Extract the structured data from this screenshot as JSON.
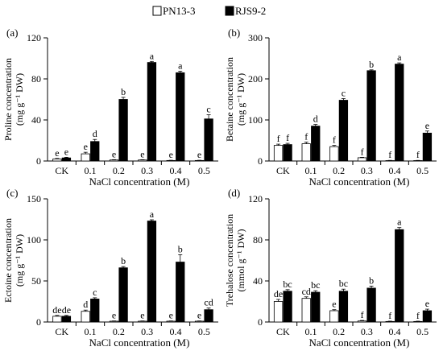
{
  "legend": {
    "items": [
      {
        "name": "PN13-3",
        "color": "#ffffff"
      },
      {
        "name": "RJS9-2",
        "color": "#000000"
      }
    ]
  },
  "chart_data": [
    {
      "type": "bar",
      "panel_label": "(a)",
      "categories": [
        "CK",
        "0.1",
        "0.2",
        "0.3",
        "0.4",
        "0.5"
      ],
      "xlabel": "NaCl concentration (M)",
      "ylabel_line1": "Proline concentration",
      "ylabel_line2": "(mg g⁻¹ DW)",
      "ylim": [
        0,
        120
      ],
      "yticks": [
        "0",
        "40",
        "80",
        "120"
      ],
      "series": [
        {
          "name": "PN13-3",
          "values": [
            2,
            7,
            1,
            1,
            0.5,
            0.5
          ],
          "errors": [
            0.5,
            1.5,
            0.3,
            0.3,
            0.2,
            0.2
          ],
          "letters": [
            "e",
            "e",
            "e",
            "e",
            "e",
            "e"
          ],
          "color": "#ffffff"
        },
        {
          "name": "RJS9-2",
          "values": [
            3,
            19,
            60,
            96,
            86,
            41
          ],
          "errors": [
            0.6,
            2,
            2,
            1,
            1.5,
            4
          ],
          "letters": [
            "e",
            "d",
            "b",
            "a",
            "a",
            "c"
          ],
          "color": "#000000"
        }
      ]
    },
    {
      "type": "bar",
      "panel_label": "(b)",
      "categories": [
        "CK",
        "0.1",
        "0.2",
        "0.3",
        "0.4",
        "0.5"
      ],
      "xlabel": "NaCl concentration (M)",
      "ylabel_line1": "Betaine concentration",
      "ylabel_line2": "(mg g⁻¹ DW)",
      "ylim": [
        0,
        300
      ],
      "yticks": [
        "0",
        "100",
        "200",
        "300"
      ],
      "series": [
        {
          "name": "PN13-3",
          "values": [
            38,
            42,
            35,
            8,
            1,
            1
          ],
          "errors": [
            3,
            4,
            3,
            1,
            0.5,
            0.5
          ],
          "letters": [
            "f",
            "f",
            "f",
            "f",
            "f",
            "f"
          ],
          "color": "#ffffff"
        },
        {
          "name": "RJS9-2",
          "values": [
            40,
            85,
            148,
            220,
            236,
            68
          ],
          "errors": [
            3,
            4,
            4,
            2,
            3,
            5
          ],
          "letters": [
            "f",
            "d",
            "c",
            "b",
            "a",
            "e"
          ],
          "color": "#000000"
        }
      ]
    },
    {
      "type": "bar",
      "panel_label": "(c)",
      "categories": [
        "CK",
        "0.1",
        "0.2",
        "0.3",
        "0.4",
        "0.5"
      ],
      "xlabel": "NaCl concentration (M)",
      "ylabel_line1": "Ectoine concentration",
      "ylabel_line2": "(mg g⁻¹ DW)",
      "ylim": [
        0,
        150
      ],
      "yticks": [
        "0",
        "50",
        "100",
        "150"
      ],
      "series": [
        {
          "name": "PN13-3",
          "values": [
            7,
            13,
            1,
            1,
            1,
            1
          ],
          "errors": [
            1,
            1.5,
            0.3,
            0.3,
            0.3,
            0.3
          ],
          "letters": [
            "de",
            "d",
            "e",
            "e",
            "e",
            "e"
          ],
          "color": "#ffffff"
        },
        {
          "name": "RJS9-2",
          "values": [
            7,
            28,
            66,
            123,
            73,
            15
          ],
          "errors": [
            1,
            1.5,
            1.5,
            1.5,
            9,
            2
          ],
          "letters": [
            "de",
            "c",
            "b",
            "a",
            "b",
            "cd"
          ],
          "color": "#000000"
        }
      ]
    },
    {
      "type": "bar",
      "panel_label": "(d)",
      "categories": [
        "CK",
        "0.1",
        "0.2",
        "0.3",
        "0.4",
        "0.5"
      ],
      "xlabel": "NaCl concentration (M)",
      "ylabel_line1": "Trehalose concentration",
      "ylabel_line2": "(mmol g⁻¹ DW)",
      "ylim": [
        0,
        120
      ],
      "yticks": [
        "0",
        "40",
        "80",
        "120"
      ],
      "series": [
        {
          "name": "PN13-3",
          "values": [
            20,
            23,
            11,
            1,
            0.5,
            0.5
          ],
          "errors": [
            2,
            1.5,
            1,
            0.5,
            0.3,
            0.3
          ],
          "letters": [
            "de",
            "cd",
            "e",
            "f",
            "f",
            "f"
          ],
          "color": "#ffffff"
        },
        {
          "name": "RJS9-2",
          "values": [
            30,
            29,
            30,
            33,
            90,
            11
          ],
          "errors": [
            1.5,
            1.5,
            2,
            2,
            2,
            1.5
          ],
          "letters": [
            "bc",
            "bc",
            "bc",
            "b",
            "a",
            "e"
          ],
          "color": "#000000"
        }
      ]
    }
  ]
}
